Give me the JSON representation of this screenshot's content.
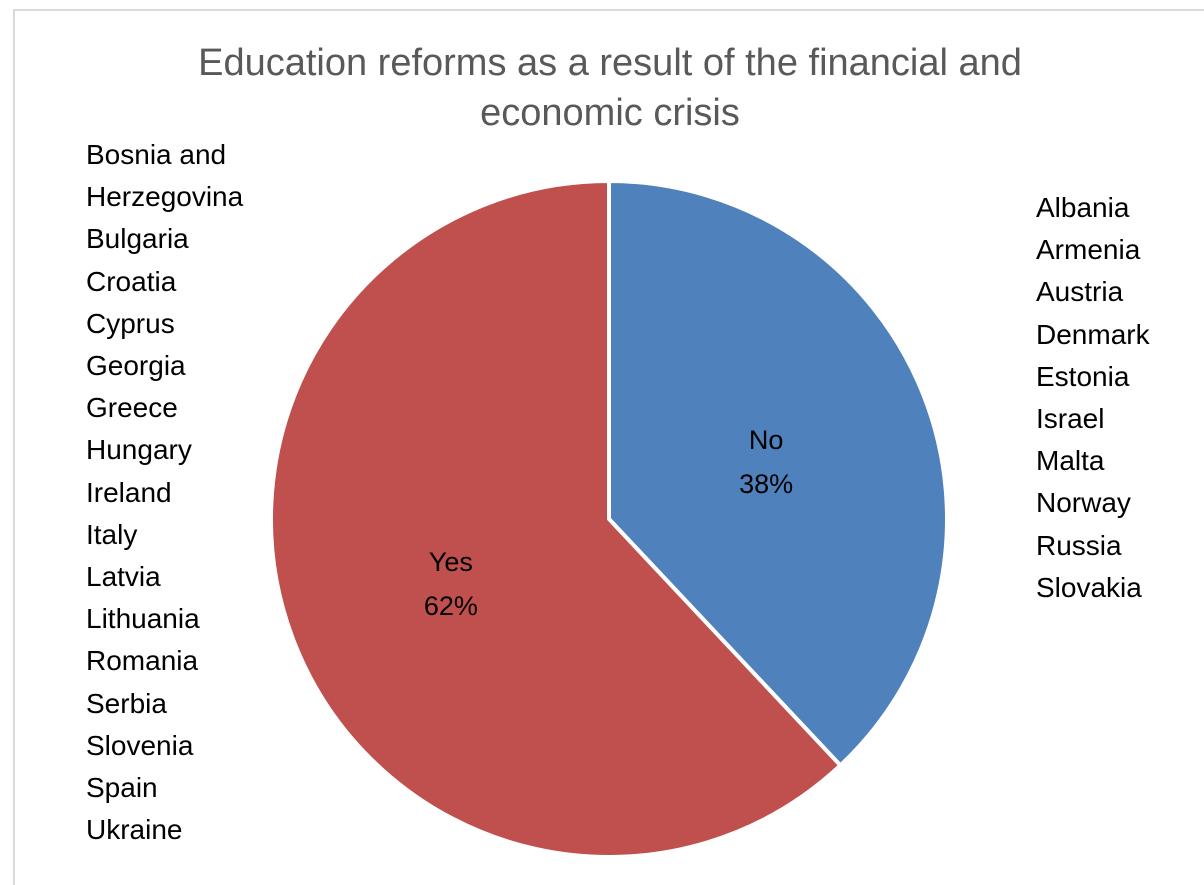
{
  "chart_data": {
    "type": "pie",
    "title": "Education reforms as a result of the financial and economic crisis",
    "slices": [
      {
        "label": "No",
        "value": 38,
        "value_label": "38%",
        "color": "#4f81bd",
        "countries": [
          "Albania",
          "Armenia",
          "Austria",
          "Denmark",
          "Estonia",
          "Israel",
          "Malta",
          "Norway",
          "Russia",
          "Slovakia"
        ]
      },
      {
        "label": "Yes",
        "value": 62,
        "value_label": "62%",
        "color": "#c0504d",
        "countries": [
          "Bosnia and Herzegovina",
          "Bulgaria",
          "Croatia",
          "Cyprus",
          "Georgia",
          "Greece",
          "Hungary",
          "Ireland",
          "Italy",
          "Latvia",
          "Lithuania",
          "Romania",
          "Serbia",
          "Slovenia",
          "Spain",
          "Ukraine"
        ]
      }
    ]
  },
  "display": {
    "title_line1": "Education reforms as a result of the financial and",
    "title_line2": "economic crisis",
    "left_list": [
      "Bosnia and",
      "Herzegovina",
      "Bulgaria",
      "Croatia",
      "Cyprus",
      "Georgia",
      "Greece",
      "Hungary",
      "Ireland",
      "Italy",
      "Latvia",
      "Lithuania",
      "Romania",
      "Serbia",
      "Slovenia",
      "Spain",
      "Ukraine"
    ],
    "right_list": [
      "Albania",
      "Armenia",
      "Austria",
      "Denmark",
      "Estonia",
      "Israel",
      "Malta",
      "Norway",
      "Russia",
      "Slovakia"
    ]
  }
}
